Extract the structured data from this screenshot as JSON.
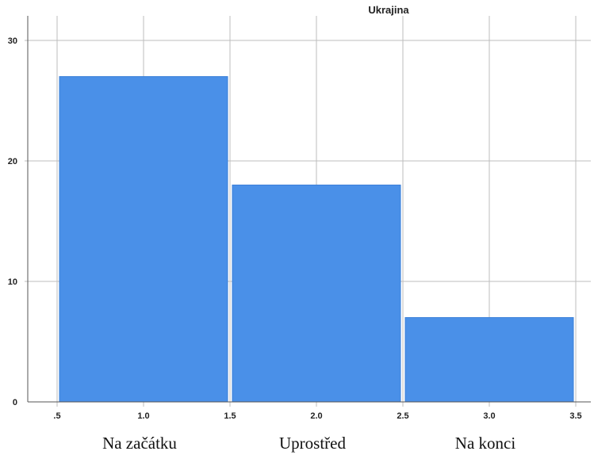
{
  "chart_data": {
    "type": "bar",
    "title": "Ukrajina",
    "bin_edges": [
      0.5,
      1.5,
      2.5,
      3.5
    ],
    "values": [
      27,
      18,
      7
    ],
    "categories": [
      "Na začátku",
      "Uprostřed",
      "Na konci"
    ],
    "x_ticks": [
      ".5",
      "1.0",
      "1.5",
      "2.0",
      "2.5",
      "3.0",
      "3.5"
    ],
    "y_ticks": [
      "0",
      "10",
      "20",
      "30"
    ],
    "xlim": [
      0.5,
      3.5
    ],
    "ylim": [
      0,
      30
    ],
    "grid": true,
    "bar_color": "#4a90e8",
    "xlabel": "",
    "ylabel": ""
  }
}
